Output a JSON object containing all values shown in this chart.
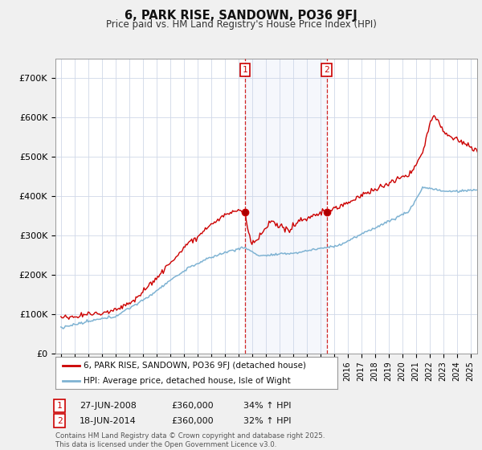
{
  "title": "6, PARK RISE, SANDOWN, PO36 9FJ",
  "subtitle": "Price paid vs. HM Land Registry's House Price Index (HPI)",
  "ylim": [
    0,
    750000
  ],
  "yticks": [
    0,
    100000,
    200000,
    300000,
    400000,
    500000,
    600000,
    700000
  ],
  "ytick_labels": [
    "£0",
    "£100K",
    "£200K",
    "£300K",
    "£400K",
    "£500K",
    "£600K",
    "£700K"
  ],
  "sale1_date": "27-JUN-2008",
  "sale1_price": 360000,
  "sale1_hpi": "34% ↑ HPI",
  "sale2_date": "18-JUN-2014",
  "sale2_price": 360000,
  "sale2_hpi": "32% ↑ HPI",
  "line1_color": "#cc0000",
  "line2_color": "#7fb3d3",
  "shading_color": "#ddeeff",
  "vline_color": "#cc0000",
  "legend1_label": "6, PARK RISE, SANDOWN, PO36 9FJ (detached house)",
  "legend2_label": "HPI: Average price, detached house, Isle of Wight",
  "footer": "Contains HM Land Registry data © Crown copyright and database right 2025.\nThis data is licensed under the Open Government Licence v3.0.",
  "background_color": "#f0f0f0",
  "plot_bg_color": "#ffffff",
  "sale1_x": 2008.49,
  "sale2_x": 2014.47,
  "xlim_left": 1994.6,
  "xlim_right": 2025.5
}
